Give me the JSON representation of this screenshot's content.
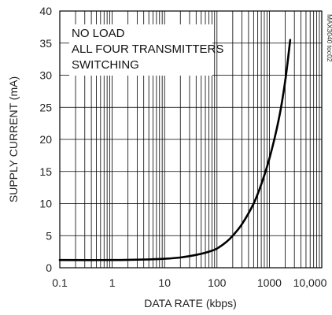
{
  "chart_data": {
    "type": "line",
    "xscale": "log",
    "xlim": [
      0.1,
      10000
    ],
    "ylim": [
      0,
      40
    ],
    "xticks": [
      0.1,
      1,
      10,
      100,
      1000,
      10000
    ],
    "xtick_labels": [
      "0.1",
      "1",
      "10",
      "100",
      "1000",
      "10,000"
    ],
    "yticks": [
      0,
      5,
      10,
      15,
      20,
      25,
      30,
      35,
      40
    ],
    "ytick_labels": [
      "0",
      "5",
      "10",
      "15",
      "20",
      "25",
      "30",
      "35",
      "40"
    ],
    "xlabel": "DATA RATE (kbps)",
    "ylabel": "SUPPLY CURRENT (mA)",
    "grid": true,
    "annotations": [
      "NO LOAD",
      "ALL FOUR TRANSMITTERS",
      "SWITCHING"
    ],
    "figure_id": "MAX3040 toc02",
    "series": [
      {
        "x": [
          0.1,
          1,
          5,
          10,
          20,
          40,
          70,
          100,
          150,
          200,
          300,
          500,
          700,
          1000,
          1500,
          2000,
          2500
        ],
        "y": [
          1.2,
          1.2,
          1.3,
          1.4,
          1.6,
          2.0,
          2.5,
          3.0,
          4.0,
          5.0,
          6.8,
          10.0,
          13.0,
          17.0,
          23.0,
          29.0,
          35.5
        ]
      }
    ]
  }
}
